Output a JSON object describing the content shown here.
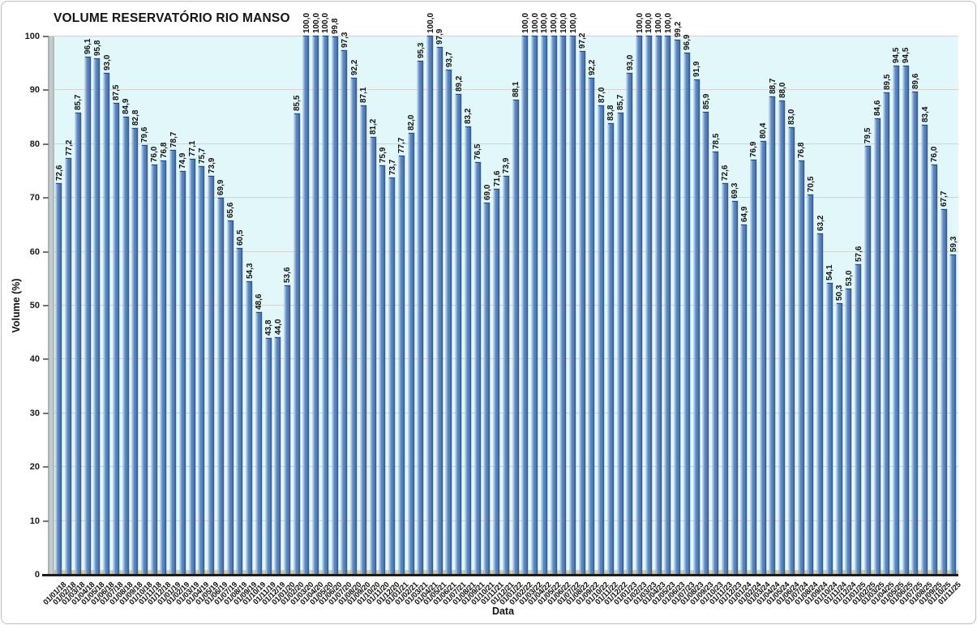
{
  "title": "VOLUME RESERVATÓRIO RIO MANSO",
  "colors": {
    "bar_main": "#5a83bd",
    "bar_highlight": "#b3cfe9",
    "bar_shadow": "#2f5791",
    "plot_background": "#e2f7fa",
    "gridline": "#d2d2d2",
    "floor": "#ded6ac",
    "wall": "#aab4b4",
    "axis": "#1c1c1c",
    "text": "#111111"
  },
  "chart_data": {
    "type": "bar",
    "title": "VOLUME RESERVATÓRIO RIO MANSO",
    "xlabel": "Data",
    "ylabel": "Volume (%)",
    "ylim": [
      0,
      100
    ],
    "ytick_step": 10,
    "grid": true,
    "legend_position": "none",
    "value_label_format": "decimal-comma-1",
    "categories": [
      "01/01/18",
      "01/02/18",
      "01/03/18",
      "01/04/18",
      "01/05/18",
      "01/06/18",
      "01/07/18",
      "01/08/18",
      "01/09/18",
      "01/10/18",
      "01/11/18",
      "01/12/18",
      "01/01/19",
      "01/02/19",
      "01/03/19",
      "01/04/19",
      "01/05/19",
      "01/06/19",
      "01/07/19",
      "01/08/19",
      "01/09/19",
      "01/10/19",
      "01/11/19",
      "01/12/19",
      "01/01/20",
      "01/02/20",
      "01/03/20",
      "01/04/20",
      "01/05/20",
      "01/06/20",
      "01/07/20",
      "01/08/20",
      "01/09/20",
      "01/10/20",
      "01/11/20",
      "01/12/20",
      "01/01/21",
      "01/02/21",
      "01/03/21",
      "01/04/21",
      "01/05/21",
      "01/06/21",
      "01/07/21",
      "01/08/21",
      "01/09/21",
      "01/10/21",
      "01/11/21",
      "01/12/21",
      "01/01/22",
      "01/02/22",
      "01/03/22",
      "01/04/22",
      "01/05/22",
      "01/06/22",
      "01/07/22",
      "01/08/22",
      "01/09/22",
      "01/10/22",
      "01/11/22",
      "01/12/22",
      "01/01/23",
      "01/02/23",
      "01/03/23",
      "01/04/23",
      "01/05/23",
      "01/06/23",
      "01/07/23",
      "01/08/23",
      "01/09/23",
      "01/10/23",
      "01/11/23",
      "01/12/23",
      "01/01/24",
      "01/02/24",
      "01/03/24",
      "01/04/24",
      "01/05/24",
      "01/06/24",
      "01/07/24",
      "01/08/24",
      "01/09/24",
      "01/10/24",
      "01/11/24",
      "01/12/24",
      "01/01/25",
      "01/02/25",
      "01/03/25",
      "01/04/25",
      "01/05/25",
      "01/06/25",
      "01/07/25",
      "01/08/25",
      "01/09/25",
      "01/10/25",
      "01/11/25"
    ],
    "values": [
      72.6,
      77.2,
      85.7,
      96.1,
      95.8,
      93.0,
      87.5,
      84.9,
      82.8,
      79.6,
      76.0,
      76.8,
      78.7,
      74.9,
      77.1,
      75.7,
      73.9,
      69.9,
      65.6,
      60.5,
      54.3,
      48.6,
      43.8,
      44.0,
      53.6,
      85.5,
      100.0,
      100.0,
      100.0,
      99.8,
      97.3,
      92.2,
      87.1,
      81.2,
      75.9,
      73.7,
      77.7,
      82.0,
      95.3,
      100.0,
      97.9,
      93.7,
      89.2,
      83.2,
      76.5,
      69.0,
      71.6,
      73.9,
      88.1,
      100.0,
      100.0,
      100.0,
      100.0,
      100.0,
      100.0,
      97.2,
      92.2,
      87.0,
      83.8,
      85.7,
      93.0,
      100.0,
      100.0,
      100.0,
      100.0,
      99.2,
      96.9,
      91.9,
      85.9,
      78.5,
      72.6,
      69.3,
      64.9,
      76.9,
      80.4,
      88.7,
      88.0,
      83.0,
      76.8,
      70.5,
      63.2,
      54.1,
      50.3,
      53.0,
      57.6,
      79.5,
      84.6,
      89.5,
      94.5,
      94.5,
      89.6,
      83.4,
      76.0,
      67.7,
      59.3
    ]
  }
}
